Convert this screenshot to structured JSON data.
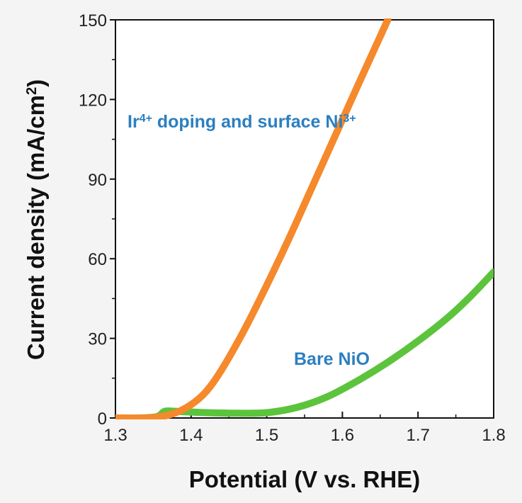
{
  "chart_data": {
    "type": "line",
    "xlabel": "Potential (V vs. RHE)",
    "ylabel_main": "Current density (mA/cm",
    "ylabel_sup": "2",
    "ylabel_end": ")",
    "xlim": [
      1.3,
      1.8
    ],
    "ylim": [
      0,
      150
    ],
    "xticks": [
      1.3,
      1.4,
      1.5,
      1.6,
      1.7,
      1.8
    ],
    "xtick_labels": [
      "1.3",
      "1.4",
      "1.5",
      "1.6",
      "1.7",
      "1.8"
    ],
    "yticks": [
      0,
      30,
      60,
      90,
      120,
      150
    ],
    "ytick_labels": [
      "0",
      "30",
      "60",
      "90",
      "120",
      "150"
    ],
    "series": [
      {
        "name": "Bare NiO",
        "color": "#5cc43c",
        "x": [
          1.3,
          1.33,
          1.355,
          1.365,
          1.38,
          1.42,
          1.46,
          1.5,
          1.54,
          1.58,
          1.62,
          1.66,
          1.7,
          1.74,
          1.77,
          1.8
        ],
        "y": [
          0,
          0,
          0.5,
          2.5,
          2.5,
          2,
          1.8,
          2,
          4,
          8,
          14,
          21,
          29,
          38,
          46,
          55
        ]
      },
      {
        "name": "Ir doping and surface Ni",
        "color": "#f5892b",
        "x": [
          1.3,
          1.34,
          1.36,
          1.38,
          1.4,
          1.42,
          1.44,
          1.47,
          1.5,
          1.53,
          1.56,
          1.59,
          1.62,
          1.66
        ],
        "y": [
          0,
          0,
          0.5,
          2,
          5,
          10,
          18,
          33,
          50,
          68,
          87,
          106,
          125,
          150
        ]
      }
    ],
    "annotations": {
      "orange_prefix": "Ir",
      "orange_sup1": "4+",
      "orange_mid": " doping and  surface Ni",
      "orange_sup2": "3+",
      "orange_color": "#2b7fc0",
      "green_label": "Bare NiO",
      "green_color": "#2b7fc0"
    }
  }
}
